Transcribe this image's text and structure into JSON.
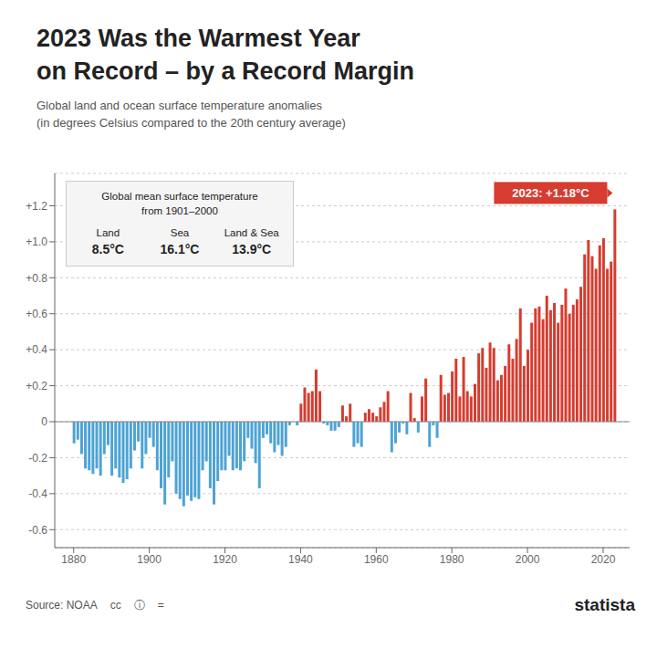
{
  "chart_data": {
    "type": "bar",
    "title": "2023 Was the Warmest Year\non Record – by a Record Margin",
    "subtitle": "Global land and ocean surface temperature anomalies\n(in degrees Celsius compared to the 20th century average)",
    "x": [
      1880,
      1881,
      1882,
      1883,
      1884,
      1885,
      1886,
      1887,
      1888,
      1889,
      1890,
      1891,
      1892,
      1893,
      1894,
      1895,
      1896,
      1897,
      1898,
      1899,
      1900,
      1901,
      1902,
      1903,
      1904,
      1905,
      1906,
      1907,
      1908,
      1909,
      1910,
      1911,
      1912,
      1913,
      1914,
      1915,
      1916,
      1917,
      1918,
      1919,
      1920,
      1921,
      1922,
      1923,
      1924,
      1925,
      1926,
      1927,
      1928,
      1929,
      1930,
      1931,
      1932,
      1933,
      1934,
      1935,
      1936,
      1937,
      1938,
      1939,
      1940,
      1941,
      1942,
      1943,
      1944,
      1945,
      1946,
      1947,
      1948,
      1949,
      1950,
      1951,
      1952,
      1953,
      1954,
      1955,
      1956,
      1957,
      1958,
      1959,
      1960,
      1961,
      1962,
      1963,
      1964,
      1965,
      1966,
      1967,
      1968,
      1969,
      1970,
      1971,
      1972,
      1973,
      1974,
      1975,
      1976,
      1977,
      1978,
      1979,
      1980,
      1981,
      1982,
      1983,
      1984,
      1985,
      1986,
      1987,
      1988,
      1989,
      1990,
      1991,
      1992,
      1993,
      1994,
      1995,
      1996,
      1997,
      1998,
      1999,
      2000,
      2001,
      2002,
      2003,
      2004,
      2005,
      2006,
      2007,
      2008,
      2009,
      2010,
      2011,
      2012,
      2013,
      2014,
      2015,
      2016,
      2017,
      2018,
      2019,
      2020,
      2021,
      2022,
      2023
    ],
    "values": [
      -0.12,
      -0.1,
      -0.18,
      -0.26,
      -0.27,
      -0.29,
      -0.26,
      -0.3,
      -0.18,
      -0.13,
      -0.3,
      -0.26,
      -0.31,
      -0.34,
      -0.32,
      -0.26,
      -0.16,
      -0.11,
      -0.26,
      -0.18,
      -0.09,
      -0.14,
      -0.27,
      -0.37,
      -0.46,
      -0.31,
      -0.22,
      -0.4,
      -0.43,
      -0.47,
      -0.41,
      -0.44,
      -0.42,
      -0.43,
      -0.27,
      -0.22,
      -0.37,
      -0.46,
      -0.33,
      -0.27,
      -0.27,
      -0.19,
      -0.27,
      -0.26,
      -0.27,
      -0.22,
      -0.09,
      -0.15,
      -0.23,
      -0.37,
      -0.09,
      -0.07,
      -0.12,
      -0.17,
      -0.13,
      -0.19,
      -0.14,
      -0.02,
      0,
      -0.02,
      0.1,
      0.19,
      0.16,
      0.17,
      0.29,
      0.17,
      -0.01,
      -0.02,
      -0.05,
      -0.05,
      -0.03,
      0.09,
      0.03,
      0.1,
      -0.14,
      -0.12,
      -0.14,
      0.05,
      0.07,
      0.05,
      0.03,
      0.08,
      0.11,
      0.17,
      -0.17,
      -0.12,
      -0.06,
      -0.01,
      -0.07,
      0.16,
      0.02,
      -0.06,
      0.14,
      0.24,
      -0.14,
      -0.02,
      -0.09,
      0.26,
      0.15,
      0.16,
      0.28,
      0.35,
      0.14,
      0.36,
      0.17,
      0.14,
      0.21,
      0.38,
      0.41,
      0.3,
      0.44,
      0.41,
      0.23,
      0.26,
      0.31,
      0.43,
      0.35,
      0.46,
      0.63,
      0.31,
      0.4,
      0.55,
      0.63,
      0.64,
      0.57,
      0.7,
      0.62,
      0.66,
      0.55,
      0.65,
      0.74,
      0.6,
      0.65,
      0.68,
      0.75,
      0.93,
      1.01,
      0.92,
      0.85,
      0.98,
      1.02,
      0.85,
      0.89,
      1.18
    ],
    "colors": [
      "#4da3d4",
      "#4da3d4",
      "#4da3d4",
      "#4da3d4",
      "#4da3d4",
      "#4da3d4",
      "#4da3d4",
      "#4da3d4",
      "#4da3d4",
      "#4da3d4",
      "#4da3d4",
      "#4da3d4",
      "#4da3d4",
      "#4da3d4",
      "#4da3d4",
      "#4da3d4",
      "#4da3d4",
      "#4da3d4",
      "#4da3d4",
      "#4da3d4",
      "#4da3d4",
      "#4da3d4",
      "#4da3d4",
      "#4da3d4",
      "#4da3d4",
      "#4da3d4",
      "#4da3d4",
      "#4da3d4",
      "#4da3d4",
      "#4da3d4",
      "#4da3d4",
      "#4da3d4",
      "#4da3d4",
      "#4da3d4",
      "#4da3d4",
      "#4da3d4",
      "#4da3d4",
      "#4da3d4",
      "#4da3d4",
      "#4da3d4",
      "#4da3d4",
      "#4da3d4",
      "#4da3d4",
      "#4da3d4",
      "#4da3d4",
      "#4da3d4",
      "#4da3d4",
      "#4da3d4",
      "#4da3d4",
      "#4da3d4",
      "#4da3d4",
      "#4da3d4",
      "#4da3d4",
      "#4da3d4",
      "#4da3d4",
      "#4da3d4",
      "#4da3d4",
      "#4da3d4",
      "#d63c2f",
      "#4da3d4",
      "#d63c2f",
      "#d63c2f",
      "#d63c2f",
      "#d63c2f",
      "#d63c2f",
      "#d63c2f",
      "#4da3d4",
      "#4da3d4",
      "#4da3d4",
      "#4da3d4",
      "#4da3d4",
      "#d63c2f",
      "#d63c2f",
      "#d63c2f",
      "#4da3d4",
      "#4da3d4",
      "#4da3d4",
      "#d63c2f",
      "#d63c2f",
      "#d63c2f",
      "#d63c2f",
      "#d63c2f",
      "#d63c2f",
      "#d63c2f",
      "#4da3d4",
      "#4da3d4",
      "#4da3d4",
      "#4da3d4",
      "#4da3d4",
      "#d63c2f",
      "#d63c2f",
      "#4da3d4",
      "#d63c2f",
      "#d63c2f",
      "#4da3d4",
      "#4da3d4",
      "#4da3d4",
      "#d63c2f",
      "#d63c2f",
      "#d63c2f",
      "#d63c2f",
      "#d63c2f",
      "#d63c2f",
      "#d63c2f",
      "#d63c2f",
      "#d63c2f",
      "#d63c2f",
      "#d63c2f",
      "#d63c2f",
      "#d63c2f",
      "#d63c2f",
      "#d63c2f",
      "#d63c2f",
      "#d63c2f",
      "#d63c2f",
      "#d63c2f",
      "#d63c2f",
      "#d63c2f",
      "#d63c2f",
      "#d63c2f",
      "#d63c2f",
      "#d63c2f",
      "#d63c2f",
      "#d63c2f",
      "#d63c2f",
      "#d63c2f",
      "#d63c2f",
      "#d63c2f",
      "#d63c2f",
      "#d63c2f",
      "#d63c2f",
      "#d63c2f",
      "#d63c2f",
      "#d63c2f",
      "#d63c2f",
      "#d63c2f",
      "#d63c2f",
      "#d63c2f",
      "#d63c2f",
      "#d63c2f",
      "#d63c2f",
      "#d63c2f",
      "#d63c2f",
      "#d63c2f"
    ],
    "xlim": [
      1875,
      2027
    ],
    "xticks": [
      1880,
      1900,
      1920,
      1940,
      1960,
      1980,
      2000,
      2020
    ],
    "ylim": [
      -0.7,
      1.38
    ],
    "yticks": [
      -0.6,
      -0.4,
      -0.2,
      0,
      {
        "value": 0.2,
        "label": "+0.2"
      },
      {
        "value": 0.4,
        "label": "+0.4"
      },
      {
        "value": 0.6,
        "label": "+0.6"
      },
      {
        "value": 0.8,
        "label": "+0.8"
      },
      {
        "value": 1.0,
        "label": "+1.0"
      },
      {
        "value": 1.2,
        "label": "+1.2"
      }
    ],
    "grid": true,
    "annotations": [
      {
        "text": "2023: +1.18°C",
        "x": 2023,
        "y": 1.18
      },
      {
        "text": "Global mean surface temperature\nfrom 1901–2000",
        "columns": [
          {
            "label": "Land",
            "value": "8.5°C"
          },
          {
            "label": "Sea",
            "value": "16.1°C"
          },
          {
            "label": "Land & Sea",
            "value": "13.9°C"
          }
        ]
      },
      {
        "text": "Source: NOAA"
      },
      {
        "text": "cc"
      },
      {
        "text": "ⓘ"
      },
      {
        "text": "="
      },
      {
        "text": "statista"
      }
    ]
  }
}
